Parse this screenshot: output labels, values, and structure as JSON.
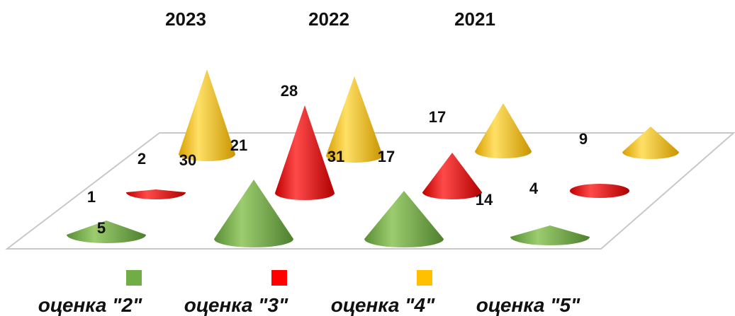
{
  "chart_data": {
    "type": "bar",
    "subtype": "3d-cone",
    "categories": [
      "2023",
      "2022",
      "2021"
    ],
    "series": [
      {
        "name": "оценка \"2\"",
        "color": "#70ad47",
        "values": [
          5,
          21,
          17
        ]
      },
      {
        "name": "оценка \"3\"",
        "color": "#ff0000",
        "values": [
          1,
          31,
          14
        ]
      },
      {
        "name": "оценка \"4\"",
        "color": "#ffc000",
        "values": [
          2,
          28,
          4
        ]
      },
      {
        "name": "оценка \"5\"",
        "color": null,
        "values": [
          30,
          17,
          9
        ]
      }
    ],
    "legend_position": "bottom",
    "grid": false
  }
}
